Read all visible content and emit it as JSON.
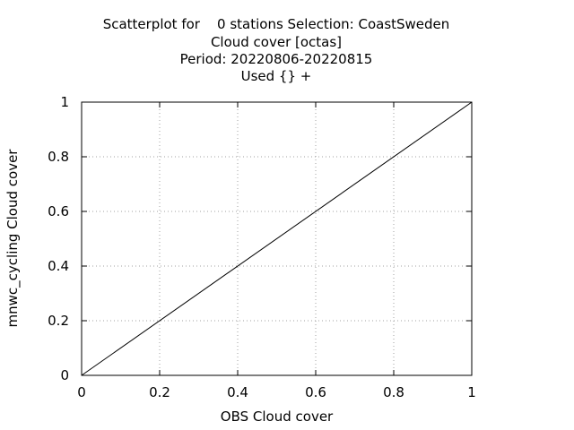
{
  "chart_data": {
    "type": "line",
    "title_lines": [
      "Scatterplot for    0 stations Selection: CoastSweden",
      "Cloud cover [octas]",
      "Period: 20220806-20220815",
      "Used {} +"
    ],
    "xlabel": "OBS Cloud cover",
    "ylabel": "mnwc_cycling Cloud cover",
    "xlim": [
      0,
      1
    ],
    "ylim": [
      0,
      1
    ],
    "x_ticks": [
      0,
      0.2,
      0.4,
      0.6,
      0.8,
      1
    ],
    "y_ticks": [
      0,
      0.2,
      0.4,
      0.6,
      0.8,
      1
    ],
    "x_tick_labels": [
      "0",
      "0.2",
      "0.4",
      "0.6",
      "0.8",
      "1"
    ],
    "y_tick_labels": [
      "0",
      "0.2",
      "0.4",
      "0.6",
      "0.8",
      "1"
    ],
    "grid": true,
    "series": [
      {
        "x": [
          0,
          1
        ],
        "y": [
          0,
          1
        ],
        "color": "#000000",
        "style": "solid"
      }
    ]
  }
}
